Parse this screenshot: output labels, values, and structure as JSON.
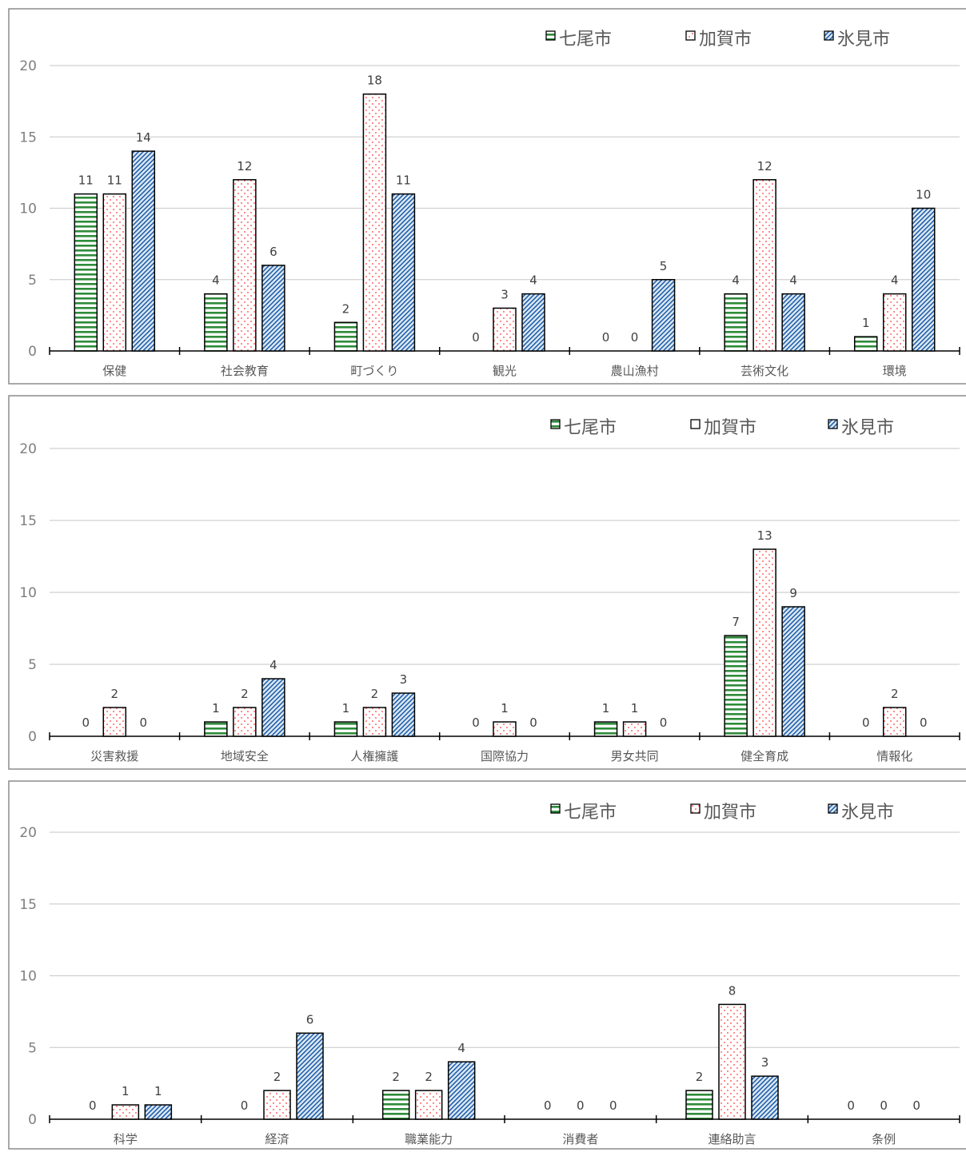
{
  "chart_data": [
    {
      "type": "bar",
      "categories": [
        "保健",
        "社会教育",
        "町づくり",
        "観光",
        "農山漁村",
        "芸術文化",
        "環境"
      ],
      "series": [
        {
          "name": "七尾市",
          "values": [
            11,
            4,
            2,
            0,
            0,
            4,
            1
          ],
          "color": "#2e8b3a"
        },
        {
          "name": "加賀市",
          "values": [
            11,
            12,
            18,
            3,
            0,
            12,
            4
          ],
          "color": "#ff3b3b"
        },
        {
          "name": "氷見市",
          "values": [
            14,
            6,
            11,
            4,
            5,
            4,
            10
          ],
          "color": "#1f5fa8"
        }
      ],
      "ylim": [
        0,
        20
      ],
      "yticks": [
        "0",
        "5",
        "10",
        "15",
        "20"
      ],
      "legend": "top-right",
      "grid": true
    },
    {
      "type": "bar",
      "categories": [
        "災害救援",
        "地域安全",
        "人権擁護",
        "国際協力",
        "男女共同",
        "健全育成",
        "情報化"
      ],
      "series": [
        {
          "name": "七尾市",
          "values": [
            0,
            1,
            1,
            0,
            1,
            7,
            0
          ],
          "color": "#2e8b3a"
        },
        {
          "name": "加賀市",
          "values": [
            2,
            2,
            2,
            1,
            1,
            13,
            2
          ],
          "color": "#ff3b3b"
        },
        {
          "name": "氷見市",
          "values": [
            0,
            4,
            3,
            0,
            0,
            9,
            0
          ],
          "color": "#1f5fa8"
        }
      ],
      "ylim": [
        0,
        20
      ],
      "yticks": [
        "0",
        "5",
        "10",
        "15",
        "20"
      ],
      "legend": "top-right",
      "grid": true
    },
    {
      "type": "bar",
      "categories": [
        "科学",
        "経済",
        "職業能力",
        "消費者",
        "連絡助言",
        "条例"
      ],
      "series": [
        {
          "name": "七尾市",
          "values": [
            0,
            0,
            2,
            0,
            2,
            0
          ],
          "color": "#2e8b3a"
        },
        {
          "name": "加賀市",
          "values": [
            1,
            2,
            2,
            0,
            8,
            0
          ],
          "color": "#ff3b3b"
        },
        {
          "name": "氷見市",
          "values": [
            1,
            6,
            4,
            0,
            3,
            0
          ],
          "color": "#1f5fa8"
        }
      ],
      "ylim": [
        0,
        20
      ],
      "yticks": [
        "0",
        "5",
        "10",
        "15",
        "20"
      ],
      "legend": "top-right",
      "grid": true
    }
  ]
}
